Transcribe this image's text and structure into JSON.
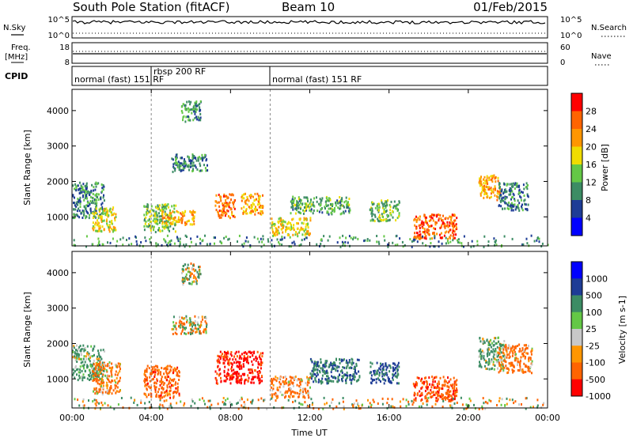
{
  "header": {
    "title": "South Pole Station (fitACF)",
    "beam": "Beam 10",
    "date": "01/Feb/2015"
  },
  "summary_panels": {
    "nsky": {
      "label": "N.Sky",
      "tick_top": "10^5",
      "tick_bottom": "10^0"
    },
    "nsearch": {
      "label": "N.Search",
      "tick_top": "10^5",
      "tick_bottom": "10^0"
    },
    "freq": {
      "label_line1": "Freq.",
      "label_line2": "[MHz]",
      "tick_top": "18",
      "tick_bottom": "8"
    },
    "nave": {
      "label": "Nave",
      "tick_top": "60",
      "tick_bottom": "0"
    },
    "cpid": {
      "label": "CPID",
      "segments": [
        {
          "text": "normal (fast) 151 RF",
          "start_hour": 0
        },
        {
          "text": "rbsp 200 RF",
          "start_hour": 4
        },
        {
          "text": "normal (fast) 151 RF",
          "start_hour": 10
        }
      ]
    }
  },
  "colors": {
    "power_scale": [
      "#0000ff",
      "#1e3c96",
      "#3c8c64",
      "#64c846",
      "#f0dc00",
      "#ff9600",
      "#ff6400",
      "#ff0000"
    ],
    "velocity_scale": [
      "#ff0000",
      "#ff6400",
      "#ff9600",
      "#c8c8c8",
      "#64c846",
      "#3c8c64",
      "#1e3c96",
      "#0000ff"
    ],
    "ground_scatter": "#c8c8c8"
  },
  "chart_data": [
    {
      "type": "heatmap",
      "name": "power",
      "ylabel": "Slant Range [km]",
      "xlabel": "",
      "x_ticks": [
        "00:00",
        "04:00",
        "08:00",
        "12:00",
        "16:00",
        "20:00",
        "00:00"
      ],
      "xlim_hours": [
        0,
        24
      ],
      "y_ticks": [
        1000,
        2000,
        3000,
        4000
      ],
      "ylim": [
        180,
        4600
      ],
      "colorbar": {
        "label": "Power [dB]",
        "ticks": [
          4,
          8,
          12,
          16,
          20,
          24,
          28
        ],
        "range": [
          0,
          32
        ]
      },
      "scatter_regions": [
        {
          "t0": 0.0,
          "t1": 1.6,
          "r0": 1000,
          "r1": 2000,
          "value": 10
        },
        {
          "t0": 1.0,
          "t1": 2.2,
          "r0": 600,
          "r1": 1300,
          "value": 18
        },
        {
          "t0": 3.6,
          "t1": 5.2,
          "r0": 600,
          "r1": 1400,
          "value": 14
        },
        {
          "t0": 4.5,
          "t1": 6.2,
          "r0": 800,
          "r1": 1200,
          "value": 22
        },
        {
          "t0": 5.5,
          "t1": 6.5,
          "r0": 3700,
          "r1": 4300,
          "value": 11
        },
        {
          "t0": 5.0,
          "t1": 6.8,
          "r0": 2300,
          "r1": 2800,
          "value": 9
        },
        {
          "t0": 7.2,
          "t1": 8.2,
          "r0": 1000,
          "r1": 1700,
          "value": 24
        },
        {
          "t0": 8.5,
          "t1": 9.6,
          "r0": 1100,
          "r1": 1700,
          "value": 22
        },
        {
          "t0": 10.0,
          "t1": 12.0,
          "r0": 500,
          "r1": 1000,
          "value": 18
        },
        {
          "t0": 11.0,
          "t1": 14.0,
          "r0": 1100,
          "r1": 1600,
          "value": 12
        },
        {
          "t0": 15.0,
          "t1": 16.5,
          "r0": 900,
          "r1": 1500,
          "value": 13
        },
        {
          "t0": 17.2,
          "t1": 19.4,
          "r0": 400,
          "r1": 1100,
          "value": 26
        },
        {
          "t0": 20.5,
          "t1": 21.6,
          "r0": 1500,
          "r1": 2200,
          "value": 22
        },
        {
          "t0": 21.5,
          "t1": 23.0,
          "r0": 1200,
          "r1": 2000,
          "value": 9
        },
        {
          "t0": 0.0,
          "t1": 24.0,
          "r0": 180,
          "r1": 500,
          "value": 10
        }
      ]
    },
    {
      "type": "heatmap",
      "name": "velocity",
      "ylabel": "Slant Range [km]",
      "xlabel": "Time UT",
      "x_ticks": [
        "00:00",
        "04:00",
        "08:00",
        "12:00",
        "16:00",
        "20:00",
        "00:00"
      ],
      "xlim_hours": [
        0,
        24
      ],
      "y_ticks": [
        1000,
        2000,
        3000,
        4000
      ],
      "ylim": [
        180,
        4600
      ],
      "colorbar": {
        "label": "Velocity [m s-1]",
        "ticks": [
          1000,
          500,
          100,
          25,
          -25,
          -100,
          -500,
          -1000
        ],
        "range": [
          -1000,
          1000
        ]
      },
      "scatter_regions": [
        {
          "t0": 0.0,
          "t1": 1.6,
          "r0": 1000,
          "r1": 2000,
          "value": 200
        },
        {
          "t0": 1.0,
          "t1": 2.4,
          "r0": 600,
          "r1": 1500,
          "value": -150
        },
        {
          "t0": 3.6,
          "t1": 5.4,
          "r0": 500,
          "r1": 1400,
          "value": -300
        },
        {
          "t0": 5.5,
          "t1": 6.5,
          "r0": 3700,
          "r1": 4300,
          "value": 0
        },
        {
          "t0": 5.0,
          "t1": 6.8,
          "r0": 2300,
          "r1": 2800,
          "value": 0
        },
        {
          "t0": 7.2,
          "t1": 9.6,
          "r0": 900,
          "r1": 1800,
          "value": -600
        },
        {
          "t0": 10.0,
          "t1": 12.0,
          "r0": 500,
          "r1": 1100,
          "value": -200
        },
        {
          "t0": 12.0,
          "t1": 14.5,
          "r0": 900,
          "r1": 1600,
          "value": 500
        },
        {
          "t0": 15.0,
          "t1": 16.5,
          "r0": 900,
          "r1": 1500,
          "value": 600
        },
        {
          "t0": 17.2,
          "t1": 19.4,
          "r0": 400,
          "r1": 1100,
          "value": -400
        },
        {
          "t0": 20.5,
          "t1": 21.8,
          "r0": 1300,
          "r1": 2200,
          "value": 150
        },
        {
          "t0": 21.5,
          "t1": 23.2,
          "r0": 1200,
          "r1": 2000,
          "value": -200
        },
        {
          "t0": 0.0,
          "t1": 24.0,
          "r0": 180,
          "r1": 500,
          "value": 0
        }
      ]
    }
  ]
}
